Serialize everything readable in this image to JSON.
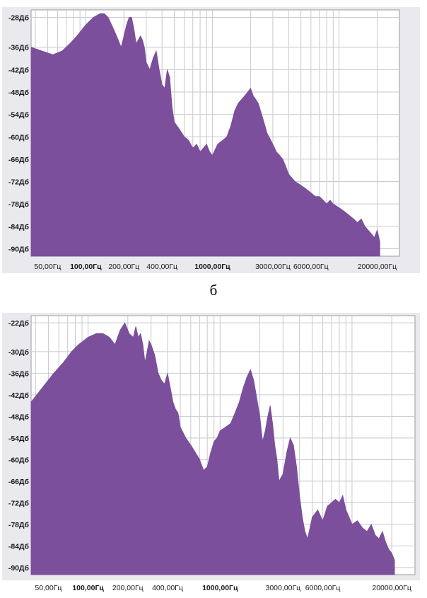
{
  "caption": "б",
  "colors": {
    "fill": "#7b4f9b",
    "plot_bg": "#ffffff",
    "frame_bg": "#e9e9ee",
    "grid": "#c9c9cf",
    "text": "#1a1a1a"
  },
  "chart_data": [
    {
      "type": "area",
      "title": "",
      "xlabel": "",
      "ylabel": "",
      "x_scale": "log",
      "xlim": [
        37,
        30000
      ],
      "ylim": [
        -92,
        -26
      ],
      "grid": true,
      "y_ticks": [
        "-28Дб",
        "-36Дб",
        "-42Дб",
        "-48Дб",
        "-54Дб",
        "-60Дб",
        "-66Дб",
        "-72Дб",
        "-78Дб",
        "-84Дб",
        "-90Дб"
      ],
      "y_tick_values": [
        -28,
        -36,
        -42,
        -48,
        -54,
        -60,
        -66,
        -72,
        -78,
        -84,
        -90
      ],
      "x_ticks": [
        "50,00Гц",
        "100,00Гц",
        "200,00Гц",
        "400,00Гц",
        "1000,00Гц",
        "3000,00Гц",
        "6000,00Гц",
        "20000,00Гц"
      ],
      "x_tick_values": [
        50,
        100,
        200,
        400,
        1000,
        3000,
        6000,
        20000
      ],
      "x_ticks_bold": [
        "100,00Гц",
        "1000,00Гц"
      ],
      "series": [
        {
          "x": [
            37,
            45,
            55,
            65,
            75,
            85,
            100,
            115,
            130,
            140,
            150,
            160,
            170,
            180,
            185,
            190,
            200,
            210,
            220,
            230,
            240,
            250,
            260,
            270,
            280,
            290,
            300,
            320,
            340,
            360,
            380,
            400,
            420,
            440,
            460,
            480,
            500,
            550,
            600,
            650,
            700,
            750,
            800,
            850,
            900,
            950,
            1000,
            1100,
            1200,
            1300,
            1400,
            1500,
            1600,
            1700,
            1800,
            1900,
            2000,
            2100,
            2200,
            2300,
            2400,
            2500,
            2600,
            2700,
            2800,
            2900,
            3000,
            3200,
            3400,
            3600,
            3800,
            4000,
            4500,
            5000,
            5500,
            6000,
            6500,
            7000,
            7500,
            8000,
            8500,
            9000,
            10000,
            11000,
            12000,
            13000,
            14000,
            15000,
            16000,
            17000,
            18000,
            19000,
            20000,
            21000
          ],
          "y": [
            -36,
            -37,
            -38,
            -37,
            -35,
            -33,
            -30,
            -28,
            -27,
            -27,
            -28,
            -30,
            -32,
            -34,
            -35,
            -36,
            -33,
            -30,
            -28,
            -28,
            -31,
            -35,
            -34,
            -33,
            -34,
            -36,
            -40,
            -42,
            -39,
            -37,
            -42,
            -46,
            -47,
            -42,
            -44,
            -52,
            -56,
            -58,
            -60,
            -61,
            -63,
            -62,
            -64,
            -63,
            -62,
            -64,
            -65,
            -62,
            -61,
            -60,
            -57,
            -53,
            -51,
            -50,
            -49,
            -48,
            -47,
            -49,
            -50,
            -51,
            -53,
            -55,
            -57,
            -59,
            -60,
            -61,
            -62,
            -64,
            -65,
            -66,
            -68,
            -70,
            -72,
            -73,
            -74,
            -75,
            -76,
            -76,
            -77,
            -78,
            -77,
            -78,
            -79,
            -80,
            -81,
            -82,
            -83,
            -82,
            -84,
            -85,
            -86,
            -87,
            -85,
            -88
          ]
        }
      ]
    },
    {
      "type": "area",
      "title": "",
      "xlabel": "",
      "ylabel": "",
      "x_scale": "log",
      "xlim": [
        37,
        30000
      ],
      "ylim": [
        -92,
        -20
      ],
      "grid": true,
      "y_ticks": [
        "-22Дб",
        "-30Дб",
        "-36Дб",
        "-42Дб",
        "-48Дб",
        "-54Дб",
        "-60Дб",
        "-66Дб",
        "-72Дб",
        "-78Дб",
        "-84Дб",
        "-90Дб"
      ],
      "y_tick_values": [
        -22,
        -30,
        -36,
        -42,
        -48,
        -54,
        -60,
        -66,
        -72,
        -78,
        -84,
        -90
      ],
      "x_ticks": [
        "50,00Гц",
        "100,00Гц",
        "200,00Гц",
        "400,00Гц",
        "1000,00Гц",
        "3000,00Гц",
        "6000,00Гц",
        "20000,00Гц"
      ],
      "x_tick_values": [
        50,
        100,
        200,
        400,
        1000,
        3000,
        6000,
        20000
      ],
      "x_ticks_bold": [
        "100,00Гц",
        "1000,00Гц"
      ],
      "series": [
        {
          "x": [
            37,
            45,
            55,
            65,
            75,
            85,
            100,
            115,
            130,
            145,
            160,
            175,
            190,
            205,
            220,
            230,
            240,
            250,
            260,
            270,
            280,
            290,
            300,
            320,
            340,
            360,
            380,
            400,
            420,
            440,
            460,
            480,
            500,
            550,
            600,
            650,
            700,
            750,
            800,
            850,
            900,
            950,
            1000,
            1100,
            1200,
            1300,
            1400,
            1500,
            1600,
            1700,
            1800,
            1900,
            2000,
            2100,
            2200,
            2300,
            2400,
            2500,
            2600,
            2700,
            2800,
            3000,
            3200,
            3400,
            3600,
            3800,
            4000,
            4200,
            4400,
            4600,
            4800,
            5000,
            5500,
            6000,
            6500,
            7000,
            7500,
            8000,
            8500,
            9000,
            9500,
            10000,
            11000,
            12000,
            13000,
            14000,
            15000,
            16000,
            17000,
            18000,
            19000,
            20000,
            21000
          ],
          "y": [
            -44,
            -40,
            -36,
            -33,
            -30,
            -28,
            -26,
            -25,
            -25,
            -26,
            -28,
            -24,
            -22,
            -25,
            -26,
            -23,
            -26,
            -25,
            -28,
            -33,
            -30,
            -27,
            -28,
            -31,
            -36,
            -38,
            -39,
            -36,
            -40,
            -44,
            -46,
            -47,
            -51,
            -54,
            -56,
            -58,
            -60,
            -63,
            -62,
            -58,
            -55,
            -54,
            -52,
            -51,
            -50,
            -47,
            -44,
            -40,
            -37,
            -35,
            -38,
            -43,
            -48,
            -55,
            -52,
            -48,
            -45,
            -50,
            -56,
            -60,
            -66,
            -64,
            -58,
            -54,
            -56,
            -62,
            -70,
            -76,
            -80,
            -82,
            -79,
            -76,
            -74,
            -77,
            -73,
            -72,
            -71,
            -72,
            -70,
            -74,
            -76,
            -78,
            -77,
            -79,
            -80,
            -78,
            -81,
            -82,
            -80,
            -83,
            -85,
            -86,
            -88
          ]
        }
      ]
    }
  ]
}
